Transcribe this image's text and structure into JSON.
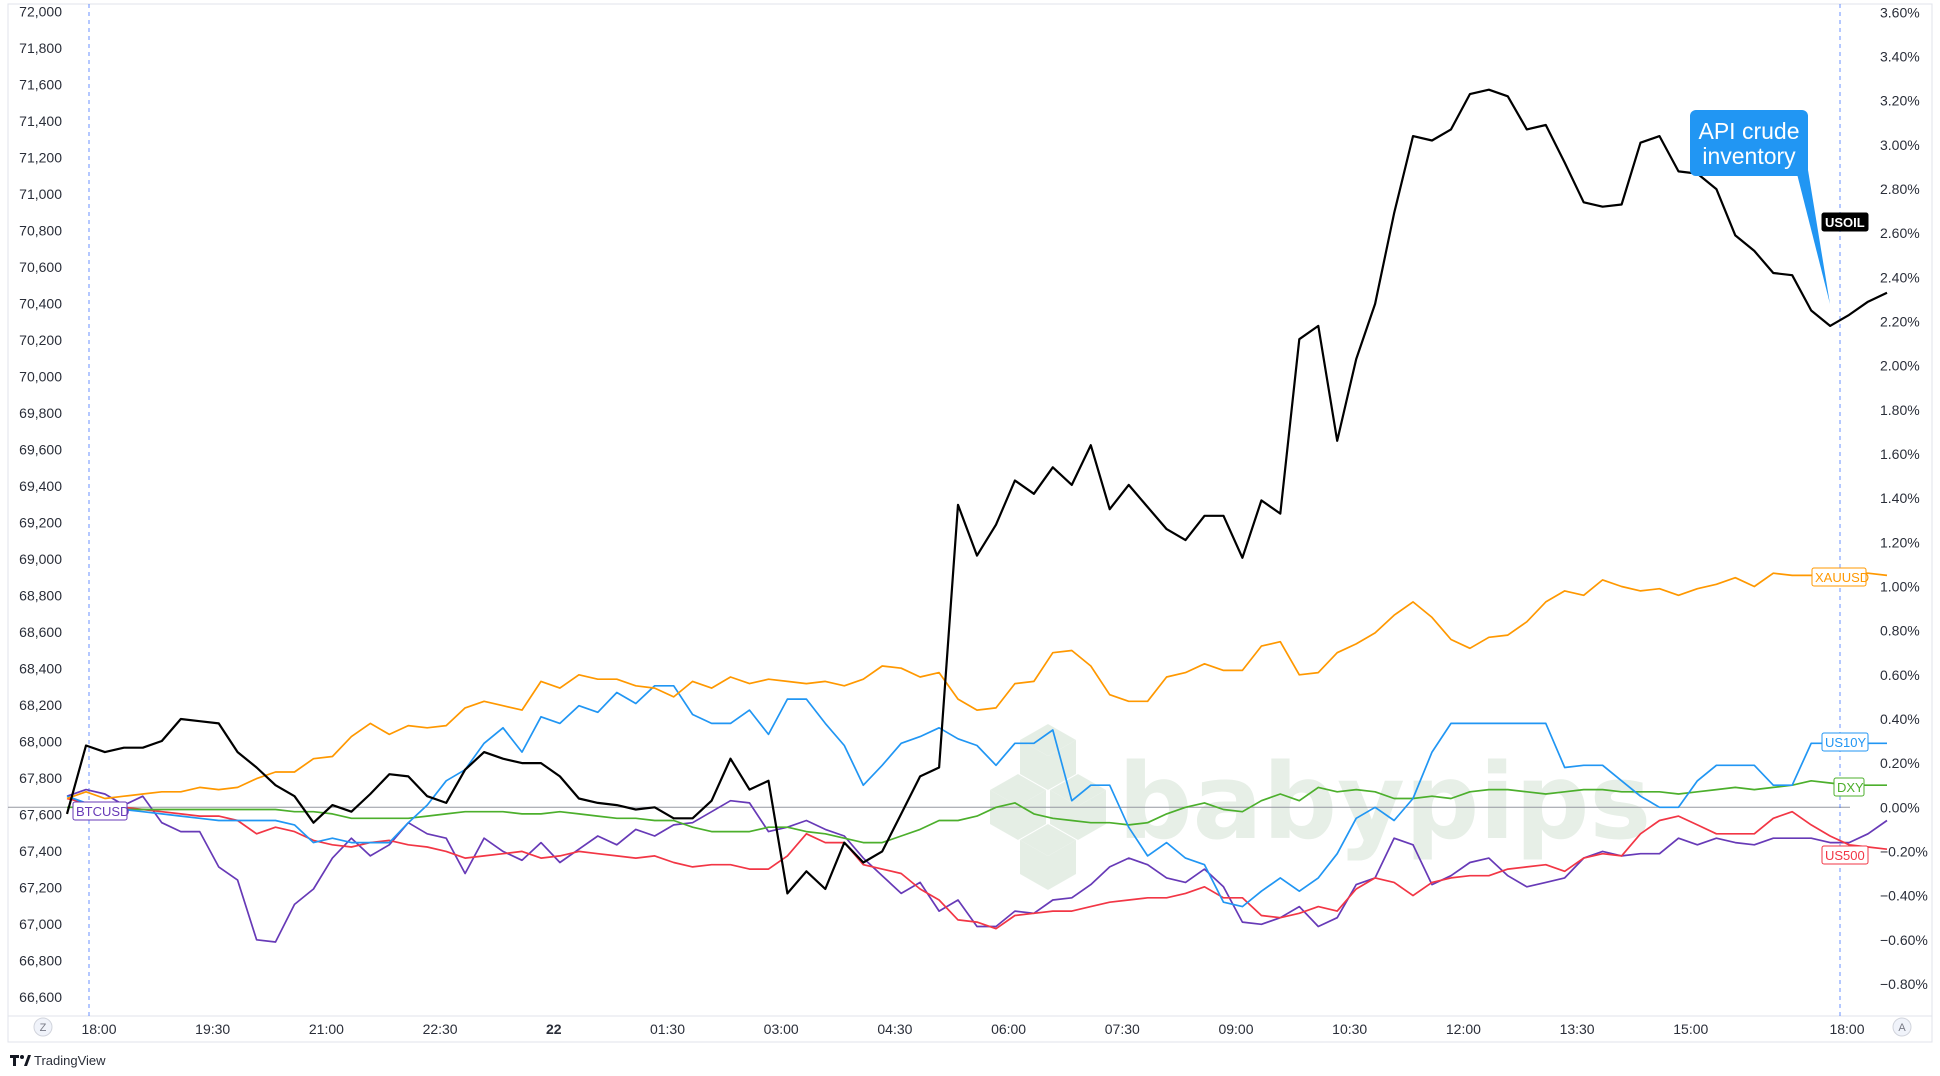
{
  "watermark": "babypips",
  "annotation": {
    "line1": "API crude",
    "line2": "inventory",
    "color": "#2196f3"
  },
  "axis_buttons": {
    "left": "Z",
    "right": "A"
  },
  "footer": {
    "brand": "TradingView"
  },
  "chart_data": {
    "type": "line",
    "x_tick_labels": [
      "18:00",
      "19:30",
      "21:00",
      "22:30",
      "22",
      "01:30",
      "03:00",
      "04:30",
      "06:00",
      "07:30",
      "09:00",
      "10:30",
      "12:00",
      "13:30",
      "15:00",
      "18:00"
    ],
    "left_axis": {
      "ticks": [
        "72,000",
        "71,800",
        "71,600",
        "71,400",
        "71,200",
        "71,000",
        "70,800",
        "70,600",
        "70,400",
        "70,200",
        "70,000",
        "69,800",
        "69,600",
        "69,400",
        "69,200",
        "69,000",
        "68,800",
        "68,600",
        "68,400",
        "68,200",
        "68,000",
        "67,800",
        "67,600",
        "67,400",
        "67,200",
        "67,000",
        "66,800",
        "66,600"
      ],
      "range": [
        66550,
        72020
      ]
    },
    "right_axis": {
      "ticks": [
        "3.60%",
        "3.40%",
        "3.20%",
        "3.00%",
        "2.80%",
        "2.60%",
        "2.40%",
        "2.20%",
        "2.00%",
        "1.80%",
        "1.60%",
        "1.40%",
        "1.20%",
        "1.00%",
        "0.80%",
        "0.60%",
        "0.40%",
        "0.20%",
        "0.00%",
        "−0.20%",
        "−0.40%",
        "−0.60%",
        "−0.80%"
      ],
      "range": [
        -0.9,
        3.62
      ]
    },
    "zero_line": 0.0,
    "series": [
      {
        "name": "USOIL",
        "color": "#000000",
        "label_style": "filled",
        "values": [
          -0.03,
          0.28,
          0.25,
          0.27,
          0.27,
          0.3,
          0.4,
          0.39,
          0.38,
          0.25,
          0.18,
          0.1,
          0.05,
          -0.07,
          0.01,
          -0.02,
          0.06,
          0.15,
          0.14,
          0.05,
          0.02,
          0.17,
          0.25,
          0.22,
          0.2,
          0.2,
          0.14,
          0.04,
          0.02,
          0.01,
          -0.01,
          0.0,
          -0.05,
          -0.05,
          0.03,
          0.22,
          0.08,
          0.12,
          -0.39,
          -0.29,
          -0.37,
          -0.16,
          -0.25,
          -0.2,
          -0.03,
          0.14,
          0.18,
          1.37,
          1.14,
          1.28,
          1.48,
          1.42,
          1.54,
          1.46,
          1.64,
          1.35,
          1.46,
          1.36,
          1.26,
          1.21,
          1.32,
          1.32,
          1.13,
          1.39,
          1.33,
          2.12,
          2.18,
          1.66,
          2.03,
          2.28,
          2.69,
          3.04,
          3.02,
          3.07,
          3.23,
          3.25,
          3.22,
          3.07,
          3.09,
          2.92,
          2.74,
          2.72,
          2.73,
          3.01,
          3.04,
          2.88,
          2.87,
          2.8,
          2.59,
          2.52,
          2.42,
          2.41,
          2.25,
          2.18,
          2.23,
          2.29,
          2.33
        ]
      },
      {
        "name": "XAUUSD",
        "color": "#ff9800",
        "label_style": "outline",
        "values": [
          0.04,
          0.07,
          0.04,
          0.05,
          0.06,
          0.07,
          0.07,
          0.09,
          0.08,
          0.09,
          0.13,
          0.16,
          0.16,
          0.22,
          0.23,
          0.32,
          0.38,
          0.33,
          0.37,
          0.36,
          0.37,
          0.45,
          0.48,
          0.46,
          0.44,
          0.57,
          0.54,
          0.6,
          0.58,
          0.58,
          0.55,
          0.54,
          0.5,
          0.57,
          0.54,
          0.59,
          0.56,
          0.58,
          0.57,
          0.56,
          0.57,
          0.55,
          0.58,
          0.64,
          0.63,
          0.59,
          0.61,
          0.49,
          0.44,
          0.45,
          0.56,
          0.57,
          0.7,
          0.71,
          0.64,
          0.51,
          0.48,
          0.48,
          0.59,
          0.61,
          0.65,
          0.62,
          0.62,
          0.73,
          0.75,
          0.6,
          0.61,
          0.7,
          0.74,
          0.79,
          0.87,
          0.93,
          0.86,
          0.76,
          0.72,
          0.77,
          0.78,
          0.84,
          0.93,
          0.98,
          0.96,
          1.03,
          1.0,
          0.98,
          0.99,
          0.96,
          0.99,
          1.01,
          1.04,
          1.0,
          1.06,
          1.05,
          1.05,
          1.05,
          1.06,
          1.06,
          1.05
        ]
      },
      {
        "name": "US10Y",
        "color": "#2196f3",
        "label_style": "outline",
        "values": [
          0.05,
          0.02,
          0.0,
          -0.01,
          -0.02,
          -0.03,
          -0.04,
          -0.05,
          -0.06,
          -0.06,
          -0.06,
          -0.06,
          -0.08,
          -0.16,
          -0.14,
          -0.16,
          -0.16,
          -0.16,
          -0.07,
          0.01,
          0.12,
          0.17,
          0.29,
          0.36,
          0.25,
          0.41,
          0.38,
          0.46,
          0.43,
          0.52,
          0.47,
          0.55,
          0.55,
          0.42,
          0.38,
          0.38,
          0.44,
          0.33,
          0.49,
          0.49,
          0.38,
          0.28,
          0.1,
          0.19,
          0.29,
          0.32,
          0.36,
          0.31,
          0.28,
          0.19,
          0.29,
          0.29,
          0.35,
          0.03,
          0.1,
          0.1,
          -0.09,
          -0.22,
          -0.16,
          -0.23,
          -0.26,
          -0.43,
          -0.45,
          -0.38,
          -0.32,
          -0.38,
          -0.32,
          -0.21,
          -0.05,
          0.0,
          -0.06,
          0.04,
          0.25,
          0.38,
          0.38,
          0.38,
          0.38,
          0.38,
          0.38,
          0.18,
          0.19,
          0.19,
          0.12,
          0.05,
          0.0,
          0.0,
          0.12,
          0.19,
          0.19,
          0.19,
          0.1,
          0.1,
          0.29,
          0.29,
          0.27,
          0.29,
          0.29
        ]
      },
      {
        "name": "DXY",
        "color": "#4caf2c",
        "label_style": "outline",
        "values": [
          0.0,
          0.0,
          0.0,
          -0.01,
          -0.01,
          -0.01,
          -0.01,
          -0.01,
          -0.01,
          -0.01,
          -0.01,
          -0.01,
          -0.02,
          -0.02,
          -0.03,
          -0.05,
          -0.05,
          -0.05,
          -0.05,
          -0.04,
          -0.03,
          -0.02,
          -0.02,
          -0.02,
          -0.03,
          -0.03,
          -0.02,
          -0.03,
          -0.04,
          -0.05,
          -0.05,
          -0.06,
          -0.06,
          -0.09,
          -0.11,
          -0.11,
          -0.11,
          -0.09,
          -0.09,
          -0.11,
          -0.12,
          -0.14,
          -0.16,
          -0.16,
          -0.13,
          -0.1,
          -0.06,
          -0.06,
          -0.04,
          0.0,
          0.02,
          -0.03,
          -0.05,
          -0.06,
          -0.07,
          -0.07,
          -0.08,
          -0.07,
          -0.03,
          0.0,
          0.02,
          -0.01,
          -0.02,
          0.03,
          0.06,
          0.03,
          0.09,
          0.07,
          0.08,
          0.07,
          0.04,
          0.04,
          0.05,
          0.04,
          0.07,
          0.08,
          0.08,
          0.07,
          0.06,
          0.07,
          0.08,
          0.08,
          0.07,
          0.07,
          0.07,
          0.06,
          0.07,
          0.08,
          0.09,
          0.08,
          0.09,
          0.1,
          0.12,
          0.11,
          0.1,
          0.1,
          0.1
        ]
      },
      {
        "name": "US500",
        "color": "#f23645",
        "label_style": "outline",
        "values": [
          0.04,
          0.02,
          0.0,
          0.0,
          -0.01,
          -0.02,
          -0.03,
          -0.04,
          -0.04,
          -0.06,
          -0.12,
          -0.09,
          -0.11,
          -0.15,
          -0.17,
          -0.18,
          -0.16,
          -0.15,
          -0.17,
          -0.18,
          -0.2,
          -0.23,
          -0.22,
          -0.21,
          -0.2,
          -0.23,
          -0.22,
          -0.2,
          -0.21,
          -0.22,
          -0.23,
          -0.22,
          -0.25,
          -0.27,
          -0.26,
          -0.26,
          -0.28,
          -0.28,
          -0.22,
          -0.12,
          -0.16,
          -0.16,
          -0.26,
          -0.28,
          -0.3,
          -0.37,
          -0.42,
          -0.51,
          -0.52,
          -0.55,
          -0.49,
          -0.48,
          -0.47,
          -0.47,
          -0.45,
          -0.43,
          -0.42,
          -0.41,
          -0.41,
          -0.39,
          -0.36,
          -0.41,
          -0.41,
          -0.49,
          -0.5,
          -0.48,
          -0.45,
          -0.47,
          -0.37,
          -0.32,
          -0.34,
          -0.4,
          -0.34,
          -0.32,
          -0.31,
          -0.31,
          -0.28,
          -0.27,
          -0.26,
          -0.29,
          -0.23,
          -0.21,
          -0.22,
          -0.12,
          -0.06,
          -0.04,
          -0.08,
          -0.12,
          -0.12,
          -0.12,
          -0.05,
          -0.02,
          -0.08,
          -0.13,
          -0.17,
          -0.18,
          -0.19
        ]
      },
      {
        "name": "BTCUSD",
        "color": "#673ab7",
        "label_style": "outline",
        "values": [
          0.05,
          0.08,
          0.06,
          0.01,
          0.05,
          -0.07,
          -0.11,
          -0.11,
          -0.27,
          -0.33,
          -0.6,
          -0.61,
          -0.44,
          -0.37,
          -0.23,
          -0.14,
          -0.22,
          -0.17,
          -0.07,
          -0.12,
          -0.14,
          -0.3,
          -0.14,
          -0.2,
          -0.24,
          -0.16,
          -0.25,
          -0.19,
          -0.13,
          -0.17,
          -0.1,
          -0.13,
          -0.08,
          -0.07,
          -0.02,
          0.03,
          0.02,
          -0.11,
          -0.09,
          -0.06,
          -0.1,
          -0.13,
          -0.23,
          -0.31,
          -0.39,
          -0.34,
          -0.47,
          -0.42,
          -0.54,
          -0.54,
          -0.47,
          -0.48,
          -0.42,
          -0.41,
          -0.35,
          -0.27,
          -0.23,
          -0.26,
          -0.32,
          -0.34,
          -0.28,
          -0.36,
          -0.52,
          -0.53,
          -0.5,
          -0.45,
          -0.54,
          -0.5,
          -0.35,
          -0.32,
          -0.14,
          -0.17,
          -0.35,
          -0.31,
          -0.25,
          -0.23,
          -0.31,
          -0.36,
          -0.34,
          -0.32,
          -0.23,
          -0.2,
          -0.22,
          -0.21,
          -0.21,
          -0.14,
          -0.17,
          -0.14,
          -0.16,
          -0.17,
          -0.14,
          -0.14,
          -0.14,
          -0.16,
          -0.16,
          -0.12,
          -0.06
        ]
      }
    ]
  }
}
